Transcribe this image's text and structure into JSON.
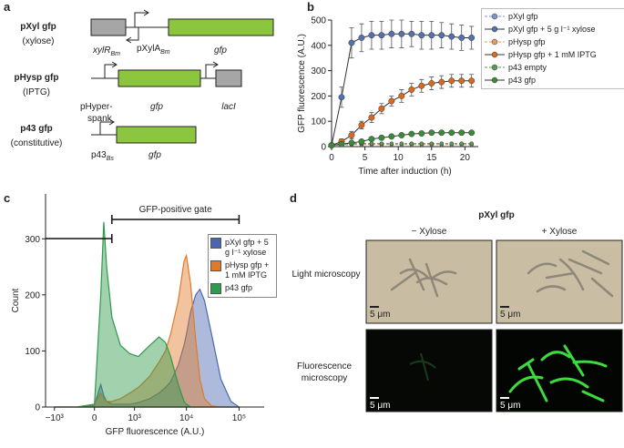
{
  "panel_labels": [
    "a",
    "b",
    "c",
    "d"
  ],
  "constructs": [
    {
      "name": "pXyl gfp",
      "inducer": "(xylose)",
      "labels": [
        {
          "text": "xylR",
          "sub": "Bm"
        },
        {
          "text": "pXylA",
          "sub": "Bm"
        },
        {
          "text": "gfp"
        }
      ]
    },
    {
      "name": "pHysp gfp",
      "inducer": "(IPTG)",
      "labels": [
        {
          "text": "pHyper-"
        },
        {
          "text": "spank"
        },
        {
          "text": "gfp"
        },
        {
          "text": "lacI"
        }
      ]
    },
    {
      "name": "p43 gfp",
      "inducer": "(constitutive)",
      "labels": [
        {
          "text": "p43",
          "sub": "Bs"
        },
        {
          "text": "gfp"
        }
      ]
    }
  ],
  "chart_data": [
    {
      "type": "line",
      "xlabel": "Time after induction (h)",
      "ylabel": "GFP fluorescence (A.U.)",
      "x": [
        0,
        1.5,
        3,
        4.5,
        6,
        7.5,
        9,
        10.5,
        12,
        13.5,
        15,
        16.5,
        18,
        19.5,
        21
      ],
      "xlim": [
        0,
        22
      ],
      "xticks": [
        0,
        5,
        10,
        15,
        20
      ],
      "ylim": [
        0,
        500
      ],
      "yticks": [
        0,
        100,
        200,
        300,
        400,
        500
      ],
      "legend": "right",
      "series": [
        {
          "name": "pXyl gfp",
          "color": "#7f95c9",
          "line_style": "dashed",
          "values": [
            5,
            8,
            10,
            10,
            10,
            10,
            10,
            10,
            10,
            10,
            10,
            10,
            10,
            10,
            10
          ]
        },
        {
          "name": "pXyl gfp + 5 g l⁻¹ xylose",
          "color": "#5470b0",
          "line_style": "solid",
          "values": [
            5,
            195,
            410,
            430,
            440,
            440,
            445,
            445,
            445,
            440,
            440,
            440,
            435,
            430,
            430
          ],
          "errors": [
            0,
            40,
            60,
            55,
            55,
            55,
            55,
            55,
            50,
            55,
            55,
            50,
            50,
            50,
            45
          ]
        },
        {
          "name": "pHysp gfp",
          "color": "#e59a64",
          "line_style": "dashed",
          "values": [
            5,
            6,
            8,
            8,
            8,
            8,
            8,
            8,
            8,
            8,
            8,
            8,
            8,
            8,
            8
          ]
        },
        {
          "name": "pHysp gfp + 1 mM IPTG",
          "color": "#d9691f",
          "line_style": "solid",
          "values": [
            5,
            20,
            45,
            85,
            115,
            150,
            180,
            200,
            225,
            240,
            250,
            255,
            260,
            260,
            260
          ],
          "errors": [
            0,
            10,
            15,
            15,
            20,
            20,
            20,
            25,
            25,
            25,
            25,
            25,
            25,
            25,
            25
          ]
        },
        {
          "name": "p43 empty",
          "color": "#5c9a5c",
          "line_style": "dashed",
          "values": [
            5,
            10,
            12,
            12,
            12,
            12,
            12,
            12,
            12,
            12,
            12,
            12,
            12,
            12,
            12
          ]
        },
        {
          "name": "p43 gfp",
          "color": "#3a8a3a",
          "line_style": "solid",
          "values": [
            5,
            10,
            15,
            20,
            30,
            35,
            40,
            45,
            50,
            52,
            55,
            55,
            55,
            55,
            55
          ],
          "errors": [
            0,
            3,
            4,
            5,
            5,
            5,
            5,
            5,
            5,
            5,
            5,
            5,
            5,
            5,
            5
          ]
        }
      ]
    },
    {
      "type": "area",
      "xlabel": "GFP fluorescence (A.U.)",
      "ylabel": "Count",
      "xscale": "biexponential",
      "x": [
        -1000,
        -300,
        0,
        100,
        150,
        200,
        300,
        500,
        800,
        1200,
        2000,
        3000,
        4000,
        5000,
        7000,
        9000,
        10000,
        12000,
        15000,
        18000,
        22000,
        30000,
        45000,
        70000,
        100000
      ],
      "xlim": [
        -1500,
        300000
      ],
      "xticks": [
        {
          "value": -1000,
          "label": "−10³"
        },
        0,
        {
          "value": 1000,
          "label": "10³"
        },
        {
          "value": 10000,
          "label": "10⁴"
        },
        {
          "value": 100000,
          "label": "10⁵"
        }
      ],
      "ylim": [
        0,
        380
      ],
      "yticks": [
        0,
        100,
        200,
        300
      ],
      "legend": "right",
      "gate": {
        "label": "GFP-positive gate",
        "range": [
          300,
          100000
        ]
      },
      "series": [
        {
          "name": "pXyl gfp + 5 g l⁻¹ xylose",
          "color": "#4a66b0",
          "values": [
            0,
            0,
            3,
            40,
            20,
            10,
            5,
            5,
            5,
            8,
            15,
            25,
            35,
            45,
            75,
            110,
            130,
            170,
            200,
            210,
            190,
            130,
            50,
            10,
            0
          ]
        },
        {
          "name": "pHysp gfp + 1 mM IPTG",
          "color": "#e07a2a",
          "values": [
            0,
            0,
            5,
            25,
            15,
            10,
            10,
            15,
            25,
            35,
            55,
            80,
            100,
            130,
            190,
            260,
            270,
            220,
            120,
            50,
            15,
            2,
            0,
            0,
            0
          ]
        },
        {
          "name": "p43 gfp",
          "color": "#2e9a4a",
          "values": [
            0,
            0,
            5,
            200,
            330,
            250,
            160,
            110,
            95,
            90,
            110,
            125,
            115,
            90,
            40,
            10,
            5,
            0,
            0,
            0,
            0,
            0,
            0,
            0,
            0
          ]
        }
      ]
    }
  ],
  "microscopy": {
    "title": "pXyl gfp",
    "columns": [
      "− Xylose",
      "+ Xylose"
    ],
    "rows": [
      "Light microscopy",
      "Fluorescence microscopy"
    ],
    "scale_bar": "5 μm"
  }
}
